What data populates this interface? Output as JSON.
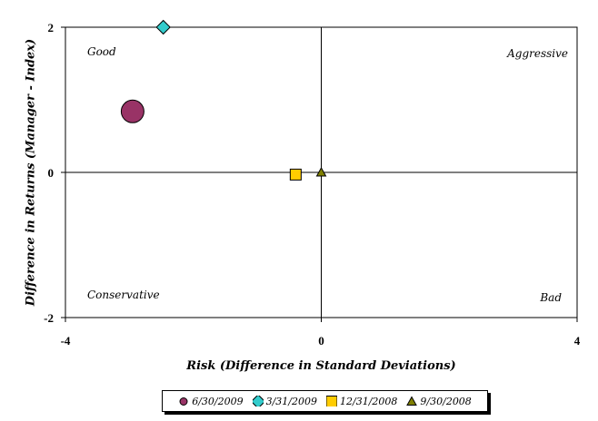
{
  "chart_data": {
    "type": "scatter",
    "xlabel": "Risk (Difference in Standard Deviations)",
    "ylabel": "Difference in Returns (Manager - Index)",
    "xlim": [
      -4,
      4
    ],
    "ylim": [
      -2,
      2
    ],
    "xticks": [
      "-4",
      "0",
      "4"
    ],
    "yticks": [
      "2",
      "0",
      "-2"
    ],
    "grid": false,
    "legend_position": "bottom",
    "quadrant_labels": {
      "top_left": "Good",
      "top_right": "Aggressive",
      "bottom_left": "Conservative",
      "bottom_right": "Bad"
    },
    "series": [
      {
        "name": "6/30/2009",
        "marker": "circle",
        "color": "#993366",
        "x": -2.95,
        "y": 0.84,
        "size": "large"
      },
      {
        "name": "3/31/2009",
        "marker": "diamond",
        "color": "#33CCCC",
        "x": -2.47,
        "y": 2.0,
        "size": "small"
      },
      {
        "name": "12/31/2008",
        "marker": "square",
        "color": "#FFCC00",
        "x": -0.4,
        "y": -0.03,
        "size": "small"
      },
      {
        "name": "9/30/2008",
        "marker": "triangle",
        "color": "#808000",
        "x": 0.0,
        "y": 0.0,
        "size": "small"
      }
    ]
  }
}
